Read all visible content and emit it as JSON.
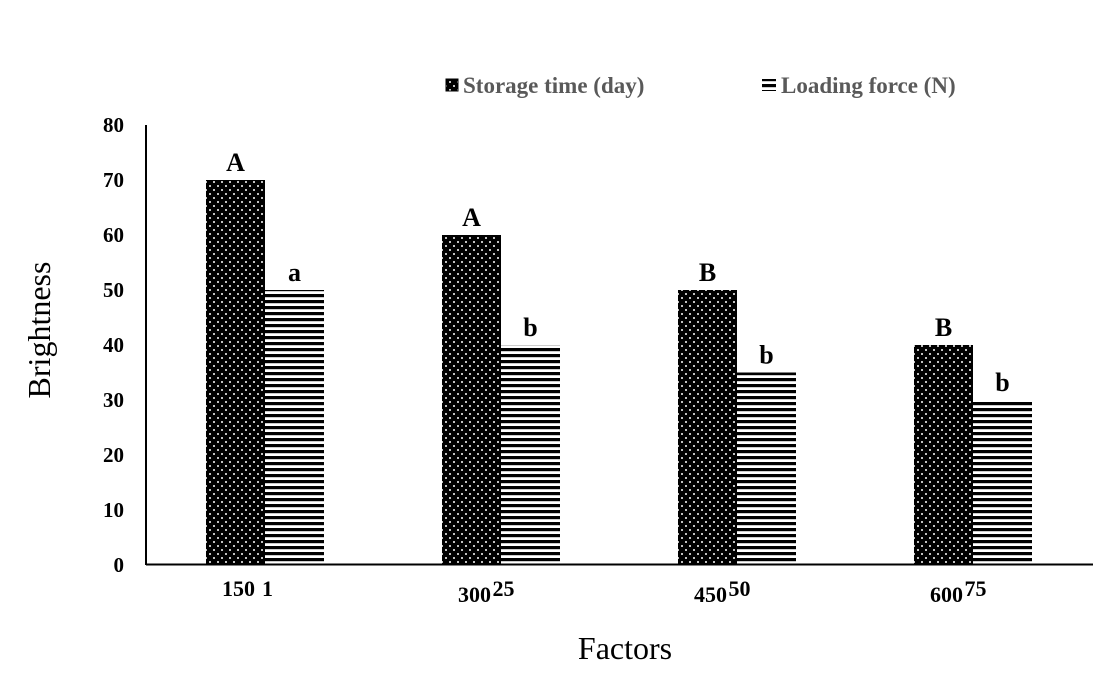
{
  "chart_data": {
    "type": "bar",
    "xlabel": "Factors",
    "ylabel": "Brightness",
    "ylim": [
      0,
      80
    ],
    "yticks": [
      0,
      10,
      20,
      30,
      40,
      50,
      60,
      70,
      80
    ],
    "grid": false,
    "legend_position": "top-right",
    "series": [
      {
        "name": "Storage time (day)",
        "categories": [
          "150",
          "300",
          "450",
          "600"
        ],
        "values": [
          70,
          60,
          50,
          40
        ],
        "significance": [
          "A",
          "A",
          "B",
          "B"
        ],
        "pattern": "dotted",
        "color": "#000000"
      },
      {
        "name": "Loading force (N)",
        "categories": [
          "1",
          "25",
          "50",
          "75"
        ],
        "values": [
          50,
          40,
          35,
          30
        ],
        "significance": [
          "a",
          "b",
          "b",
          "b"
        ],
        "pattern": "horizontal-stripes",
        "color": "#000000"
      }
    ]
  }
}
